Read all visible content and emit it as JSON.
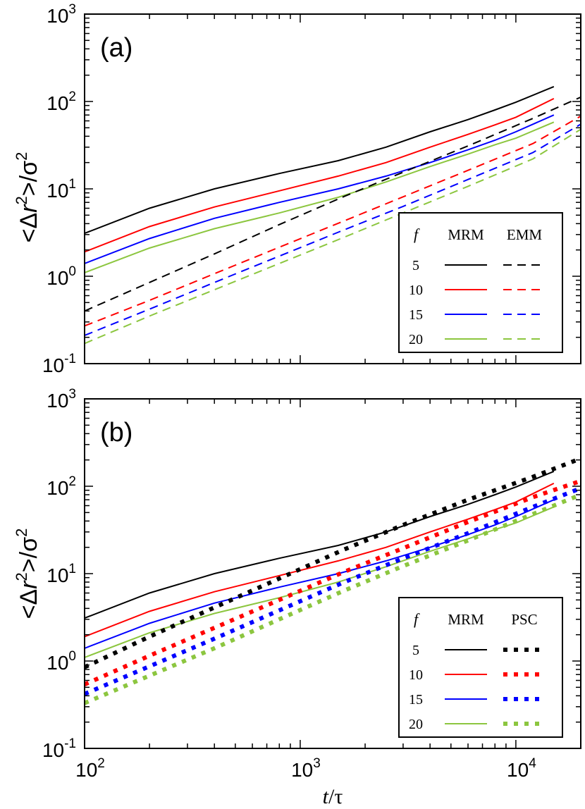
{
  "figure": {
    "xlabel_t": "t",
    "xlabel_sep": "/",
    "xlabel_tau": "τ",
    "ylabel_lt": "<",
    "ylabel_delta": "Δ",
    "ylabel_r": "r",
    "ylabel_exp": "2",
    "ylabel_gt": ">/",
    "ylabel_sigma": "σ",
    "ylabel_sigma_exp": "2"
  },
  "chart_data": [
    {
      "type": "line",
      "panel_label": "(a)",
      "x_scale": "log",
      "y_scale": "log",
      "xlim": [
        100,
        20000
      ],
      "ylim": [
        0.1,
        1000
      ],
      "x_ticks": [
        {
          "base": "10",
          "exp": "2",
          "value": 100
        },
        {
          "base": "10",
          "exp": "3",
          "value": 1000
        },
        {
          "base": "10",
          "exp": "4",
          "value": 10000
        }
      ],
      "y_ticks": [
        {
          "base": "10",
          "exp": "-1",
          "value": 0.1
        },
        {
          "base": "10",
          "exp": "0",
          "value": 1
        },
        {
          "base": "10",
          "exp": "1",
          "value": 10
        },
        {
          "base": "10",
          "exp": "2",
          "value": 100
        },
        {
          "base": "10",
          "exp": "3",
          "value": 1000
        }
      ],
      "legend": {
        "placement": "lower-right",
        "header": [
          "f",
          "MRM",
          "EMM"
        ],
        "rows": [
          "5",
          "10",
          "15",
          "20"
        ]
      },
      "series": [
        {
          "f": "5",
          "model": "MRM",
          "color": "#000000",
          "style": "solid",
          "x": [
            100,
            200,
            400,
            800,
            1500,
            2500,
            4000,
            6000,
            8000,
            10000,
            15000
          ],
          "y": [
            3.1,
            6,
            10,
            15,
            21,
            30,
            45,
            62,
            80,
            98,
            148
          ]
        },
        {
          "f": "10",
          "model": "MRM",
          "color": "#ff0000",
          "style": "solid",
          "x": [
            100,
            200,
            400,
            800,
            1500,
            2500,
            4000,
            6000,
            8000,
            10000,
            15000
          ],
          "y": [
            1.9,
            3.7,
            6.2,
            9.5,
            14,
            20,
            30,
            42,
            54,
            66,
            108
          ]
        },
        {
          "f": "15",
          "model": "MRM",
          "color": "#0000ff",
          "style": "solid",
          "x": [
            100,
            200,
            400,
            800,
            1500,
            2500,
            4000,
            6000,
            8000,
            10000,
            15000
          ],
          "y": [
            1.4,
            2.7,
            4.6,
            7,
            10,
            14,
            20,
            28,
            36,
            45,
            70
          ]
        },
        {
          "f": "20",
          "model": "MRM",
          "color": "#8cc63f",
          "style": "solid",
          "x": [
            100,
            200,
            400,
            800,
            1500,
            2500,
            4000,
            6000,
            8000,
            10000,
            15000
          ],
          "y": [
            1.1,
            2.1,
            3.5,
            5.3,
            8,
            12,
            18,
            25,
            32,
            38,
            58
          ]
        },
        {
          "f": "5",
          "model": "EMM",
          "color": "#000000",
          "style": "dashed",
          "x": [
            100,
            200,
            400,
            800,
            1600,
            3000,
            6000,
            12000,
            20000
          ],
          "y": [
            0.4,
            0.85,
            1.8,
            3.9,
            8.2,
            15.5,
            31,
            64,
            112
          ]
        },
        {
          "f": "10",
          "model": "EMM",
          "color": "#ff0000",
          "style": "dashed",
          "x": [
            100,
            200,
            400,
            800,
            1600,
            3000,
            6000,
            12000,
            20000
          ],
          "y": [
            0.27,
            0.53,
            1.07,
            2.15,
            4.3,
            8.1,
            16.3,
            33,
            68
          ]
        },
        {
          "f": "15",
          "model": "EMM",
          "color": "#0000ff",
          "style": "dashed",
          "x": [
            100,
            200,
            400,
            800,
            1600,
            3000,
            6000,
            12000,
            20000
          ],
          "y": [
            0.21,
            0.42,
            0.85,
            1.7,
            3.4,
            6.3,
            12.8,
            26,
            55
          ]
        },
        {
          "f": "20",
          "model": "EMM",
          "color": "#8cc63f",
          "style": "dashed",
          "x": [
            100,
            200,
            400,
            800,
            1600,
            3000,
            6000,
            12000,
            20000
          ],
          "y": [
            0.17,
            0.35,
            0.7,
            1.4,
            2.8,
            5.3,
            10.7,
            22,
            48
          ]
        }
      ]
    },
    {
      "type": "line",
      "panel_label": "(b)",
      "x_scale": "log",
      "y_scale": "log",
      "xlim": [
        100,
        20000
      ],
      "ylim": [
        0.1,
        1000
      ],
      "x_ticks": [
        {
          "base": "10",
          "exp": "2",
          "value": 100
        },
        {
          "base": "10",
          "exp": "3",
          "value": 1000
        },
        {
          "base": "10",
          "exp": "4",
          "value": 10000
        }
      ],
      "y_ticks": [
        {
          "base": "10",
          "exp": "-1",
          "value": 0.1
        },
        {
          "base": "10",
          "exp": "0",
          "value": 1
        },
        {
          "base": "10",
          "exp": "1",
          "value": 10
        },
        {
          "base": "10",
          "exp": "2",
          "value": 100
        },
        {
          "base": "10",
          "exp": "3",
          "value": 1000
        }
      ],
      "legend": {
        "placement": "lower-right",
        "header": [
          "f",
          "MRM",
          "PSC"
        ],
        "rows": [
          "5",
          "10",
          "15",
          "20"
        ]
      },
      "series": [
        {
          "f": "5",
          "model": "MRM",
          "color": "#000000",
          "style": "solid",
          "x": [
            100,
            200,
            400,
            800,
            1500,
            2500,
            4000,
            6000,
            8000,
            10000,
            15000
          ],
          "y": [
            3.1,
            6,
            10,
            15,
            21,
            30,
            45,
            62,
            80,
            98,
            148
          ]
        },
        {
          "f": "10",
          "model": "MRM",
          "color": "#ff0000",
          "style": "solid",
          "x": [
            100,
            200,
            400,
            800,
            1500,
            2500,
            4000,
            6000,
            8000,
            10000,
            15000
          ],
          "y": [
            1.9,
            3.7,
            6.2,
            9.5,
            14,
            20,
            30,
            42,
            54,
            66,
            108
          ]
        },
        {
          "f": "15",
          "model": "MRM",
          "color": "#0000ff",
          "style": "solid",
          "x": [
            100,
            200,
            400,
            800,
            1500,
            2500,
            4000,
            6000,
            8000,
            10000,
            15000
          ],
          "y": [
            1.4,
            2.7,
            4.6,
            7,
            10,
            14,
            20,
            28,
            36,
            45,
            70
          ]
        },
        {
          "f": "20",
          "model": "MRM",
          "color": "#8cc63f",
          "style": "solid",
          "x": [
            100,
            200,
            400,
            800,
            1500,
            2500,
            4000,
            6000,
            8000,
            10000,
            15000
          ],
          "y": [
            1.1,
            2.1,
            3.5,
            5.3,
            8,
            12,
            18,
            25,
            32,
            38,
            58
          ]
        },
        {
          "f": "5",
          "model": "PSC",
          "color": "#000000",
          "style": "dotted",
          "x": [
            100,
            200,
            400,
            800,
            1600,
            3000,
            6000,
            12000,
            20000
          ],
          "y": [
            0.85,
            1.9,
            4.1,
            8.8,
            18.9,
            36,
            70,
            128,
            208
          ]
        },
        {
          "f": "10",
          "model": "PSC",
          "color": "#ff0000",
          "style": "dotted",
          "x": [
            100,
            200,
            400,
            800,
            1600,
            3000,
            6000,
            12000,
            20000
          ],
          "y": [
            0.54,
            1.15,
            2.4,
            5,
            10.5,
            19.5,
            39,
            75,
            115
          ]
        },
        {
          "f": "15",
          "model": "PSC",
          "color": "#0000ff",
          "style": "dotted",
          "x": [
            100,
            200,
            400,
            800,
            1600,
            3000,
            6000,
            12000,
            20000
          ],
          "y": [
            0.42,
            0.87,
            1.8,
            3.8,
            8,
            15,
            29,
            58,
            95
          ]
        },
        {
          "f": "20",
          "model": "PSC",
          "color": "#8cc63f",
          "style": "dotted",
          "x": [
            100,
            200,
            400,
            800,
            1600,
            3000,
            6000,
            12000,
            20000
          ],
          "y": [
            0.33,
            0.68,
            1.4,
            3,
            6.4,
            12.2,
            24,
            48,
            80
          ]
        }
      ]
    }
  ]
}
